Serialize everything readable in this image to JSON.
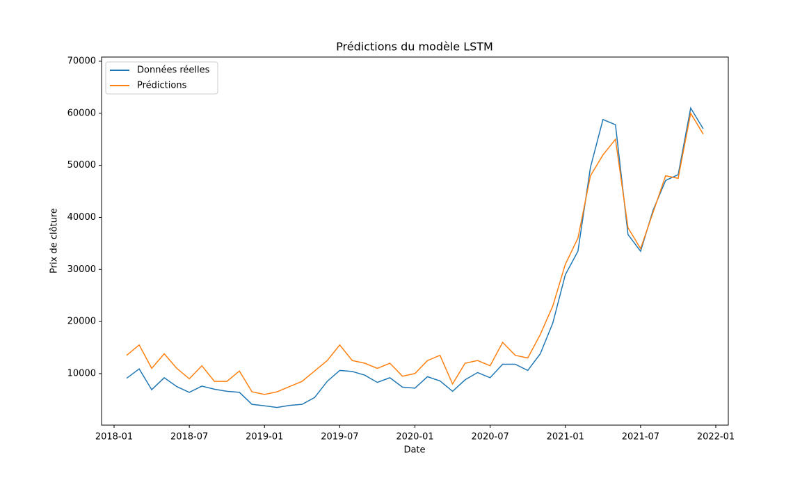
{
  "chart_data": {
    "type": "line",
    "title": "Prédictions du modèle LSTM",
    "x_label": "Date",
    "y_label": "Prix de clôture",
    "x": [
      "2018-02",
      "2018-03",
      "2018-04",
      "2018-05",
      "2018-06",
      "2018-07",
      "2018-08",
      "2018-09",
      "2018-10",
      "2018-11",
      "2018-12",
      "2019-01",
      "2019-02",
      "2019-03",
      "2019-04",
      "2019-05",
      "2019-06",
      "2019-07",
      "2019-08",
      "2019-09",
      "2019-10",
      "2019-11",
      "2019-12",
      "2020-01",
      "2020-02",
      "2020-03",
      "2020-04",
      "2020-05",
      "2020-06",
      "2020-07",
      "2020-08",
      "2020-09",
      "2020-10",
      "2020-11",
      "2020-12",
      "2021-01",
      "2021-02",
      "2021-03",
      "2021-04",
      "2021-05",
      "2021-06",
      "2021-07",
      "2021-08",
      "2021-09",
      "2021-10",
      "2021-11",
      "2021-12"
    ],
    "series": [
      {
        "name": "Données réelles",
        "color": "#1f77b4",
        "values": [
          9100,
          10900,
          6900,
          9200,
          7500,
          6400,
          7600,
          7000,
          6600,
          6400,
          4100,
          3800,
          3500,
          3900,
          4100,
          5400,
          8500,
          10600,
          10400,
          9700,
          8300,
          9200,
          7400,
          7200,
          9400,
          8600,
          6600,
          8800,
          10200,
          9200,
          11800,
          11800,
          10600,
          13800,
          19700,
          29000,
          33500,
          49600,
          58800,
          57800,
          36700,
          33500,
          41400,
          47100,
          48200,
          61000,
          57000
        ]
      },
      {
        "name": "Prédictions",
        "color": "#ff7f0e",
        "values": [
          13500,
          15500,
          11000,
          13800,
          11000,
          9000,
          11500,
          8500,
          8500,
          10500,
          6500,
          6000,
          6500,
          7500,
          8500,
          10500,
          12500,
          15500,
          12500,
          12000,
          11000,
          12000,
          9500,
          10000,
          12500,
          13500,
          8000,
          12000,
          12500,
          11500,
          16000,
          13500,
          13000,
          17500,
          23000,
          31000,
          36000,
          48000,
          52000,
          55000,
          38000,
          34000,
          41000,
          48000,
          47500,
          60000,
          56000
        ]
      }
    ],
    "xlim": [
      "2017-12",
      "2022-02"
    ],
    "xticks": [
      "2018-01",
      "2018-07",
      "2019-01",
      "2019-07",
      "2020-01",
      "2020-07",
      "2021-01",
      "2021-07",
      "2022-01"
    ],
    "ylim": [
      100,
      70800
    ],
    "yticks": [
      10000,
      20000,
      30000,
      40000,
      50000,
      60000,
      70000
    ],
    "legend": "upper left",
    "grid": false
  }
}
